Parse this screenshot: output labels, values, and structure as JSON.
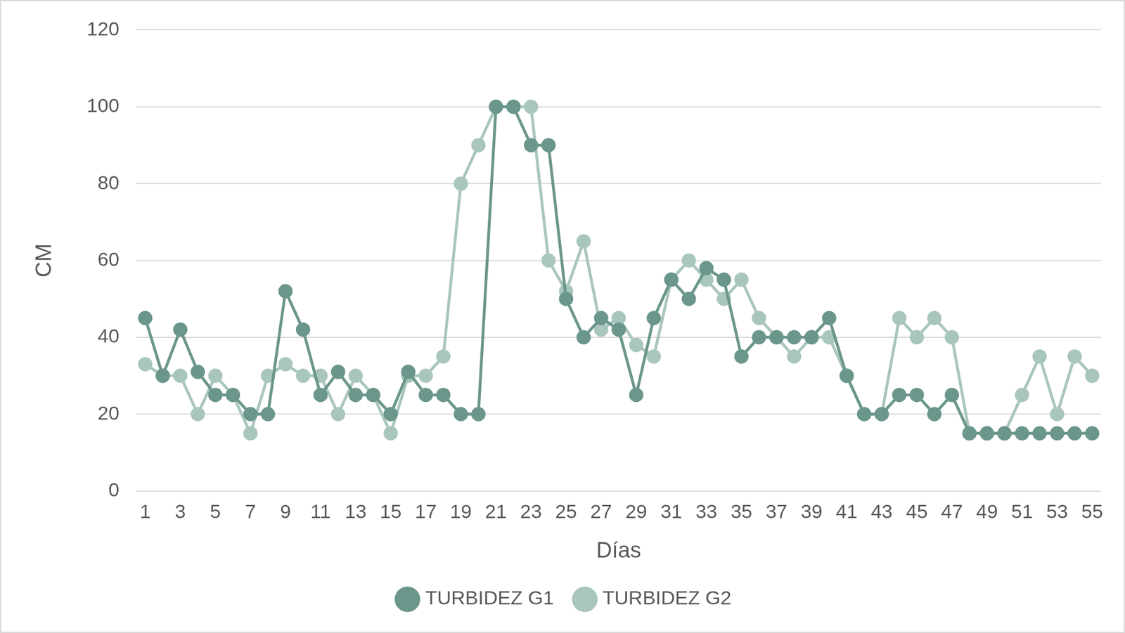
{
  "chart_data": {
    "type": "line",
    "x_label": "Días",
    "y_label": "CM",
    "categories": [
      1,
      null,
      3,
      null,
      5,
      null,
      7,
      null,
      9,
      null,
      11,
      null,
      13,
      null,
      15,
      null,
      17,
      null,
      19,
      null,
      21,
      null,
      23,
      null,
      25,
      null,
      27,
      null,
      29,
      null,
      31,
      null,
      33,
      null,
      35,
      null,
      37,
      null,
      39,
      null,
      41,
      null,
      43,
      null,
      45,
      null,
      47,
      null,
      49,
      null,
      51,
      null,
      53,
      null,
      55
    ],
    "series": [
      {
        "name": "TURBIDEZ G1",
        "color": "#6b968c",
        "marker": "circle",
        "line_style": "solid",
        "values": [
          45,
          30,
          42,
          31,
          25,
          25,
          20,
          20,
          52,
          42,
          25,
          31,
          25,
          25,
          20,
          31,
          25,
          25,
          20,
          20,
          100,
          100,
          90,
          90,
          50,
          40,
          45,
          42,
          25,
          45,
          55,
          50,
          58,
          55,
          35,
          40,
          40,
          40,
          40,
          45,
          30,
          20,
          20,
          25,
          25,
          20,
          25,
          15,
          15,
          15,
          15,
          15,
          15,
          15,
          15
        ]
      },
      {
        "name": "TURBIDEZ G2",
        "color": "#a9c6bd",
        "marker": "circle",
        "line_style": "solid",
        "values": [
          33,
          30,
          30,
          20,
          30,
          25,
          15,
          30,
          33,
          30,
          30,
          20,
          30,
          25,
          15,
          30,
          30,
          35,
          80,
          90,
          100,
          100,
          100,
          60,
          52,
          65,
          42,
          45,
          38,
          35,
          55,
          60,
          55,
          50,
          55,
          45,
          40,
          35,
          40,
          40,
          30,
          20,
          20,
          45,
          40,
          45,
          40,
          15,
          15,
          15,
          25,
          35,
          20,
          35,
          30
        ]
      }
    ],
    "ylim": [
      0,
      120
    ],
    "yticks": [
      0,
      20,
      40,
      60,
      80,
      100,
      120
    ],
    "grid": true,
    "legend": "bottom"
  }
}
